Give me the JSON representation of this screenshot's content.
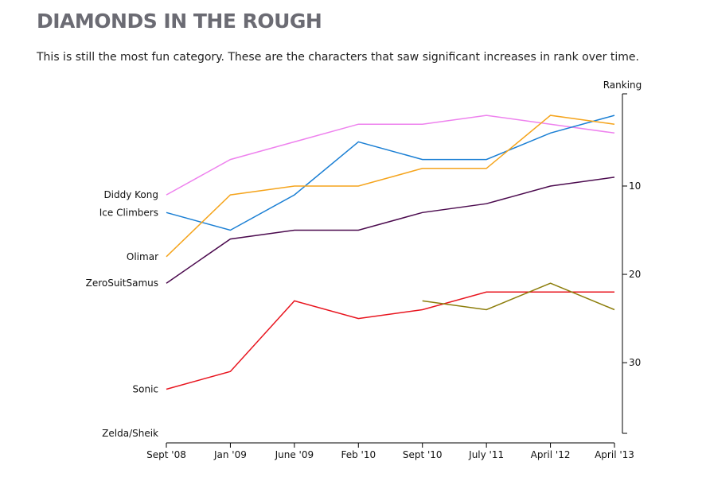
{
  "header": {
    "title": "DIAMONDS IN THE ROUGH",
    "subtitle": "This is still the most fun category. These are the characters that saw significant increases in rank over time."
  },
  "chart_data": {
    "type": "line",
    "title": "DIAMONDS IN THE ROUGH",
    "xlabel": "",
    "ylabel": "Ranking",
    "categories": [
      "Sept '08",
      "Jan '09",
      "June '09",
      "Feb '10",
      "Sept '10",
      "July '11",
      "April '12",
      "April '13"
    ],
    "ylim": [
      1,
      38
    ],
    "y_inverted": true,
    "y_ticks": [
      10,
      20,
      30
    ],
    "y_axis_side": "right",
    "grid": false,
    "legend": "direct labels at left",
    "series": [
      {
        "name": "Diddy Kong",
        "color": "#ee82ee",
        "values": [
          11,
          7,
          5,
          3,
          3,
          2,
          3,
          4
        ]
      },
      {
        "name": "Ice Climbers",
        "color": "#1a7fd4",
        "values": [
          13,
          15,
          11,
          5,
          7,
          7,
          4,
          2
        ]
      },
      {
        "name": "Olimar",
        "color": "#f5a41c",
        "values": [
          18,
          11,
          10,
          10,
          8,
          8,
          2,
          3
        ]
      },
      {
        "name": "ZeroSuitSamus",
        "color": "#4b0a4e",
        "values": [
          21,
          16,
          15,
          15,
          13,
          12,
          10,
          9
        ]
      },
      {
        "name": "Sonic",
        "color": "#e8141e",
        "values": [
          33,
          31,
          23,
          25,
          24,
          22,
          22,
          22
        ]
      },
      {
        "name": "Zelda/Sheik",
        "color": "#8c7d0a",
        "values": [
          null,
          null,
          null,
          null,
          23,
          24,
          21,
          24
        ]
      }
    ]
  }
}
